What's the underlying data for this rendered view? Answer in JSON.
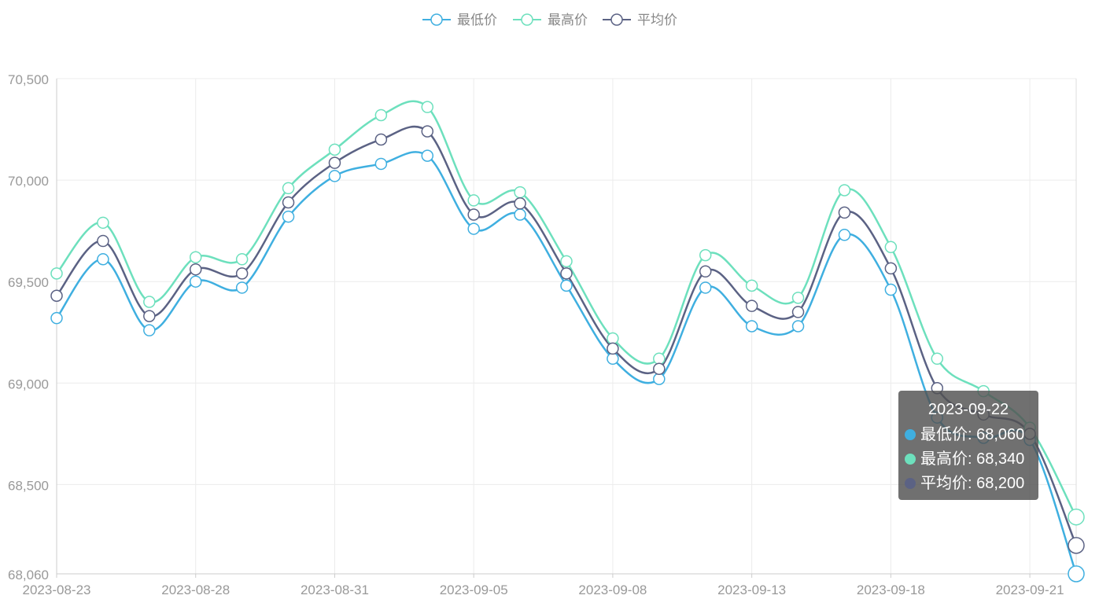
{
  "chart_data": {
    "type": "line",
    "smooth": true,
    "x": [
      "2023-08-23",
      "2023-08-24",
      "2023-08-25",
      "2023-08-28",
      "2023-08-29",
      "2023-08-30",
      "2023-08-31",
      "2023-09-01",
      "2023-09-04",
      "2023-09-05",
      "2023-09-06",
      "2023-09-07",
      "2023-09-08",
      "2023-09-11",
      "2023-09-12",
      "2023-09-13",
      "2023-09-14",
      "2023-09-15",
      "2023-09-18",
      "2023-09-19",
      "2023-09-20",
      "2023-09-21",
      "2023-09-22"
    ],
    "x_tick_labels": [
      "2023-08-23",
      "2023-08-28",
      "2023-08-31",
      "2023-09-05",
      "2023-09-08",
      "2023-09-13",
      "2023-09-18",
      "2023-09-21"
    ],
    "y_ticks": [
      68060,
      68500,
      69000,
      69500,
      70000,
      70500
    ],
    "y_tick_labels": [
      "68,060",
      "68,500",
      "69,000",
      "69,500",
      "70,000",
      "70,500"
    ],
    "ylim": [
      68060,
      70500
    ],
    "grid": true,
    "legend_position": "top-center",
    "series": [
      {
        "name": "最低价",
        "color": "#3fafe0",
        "values": [
          69320,
          69610,
          69260,
          69500,
          69470,
          69820,
          70020,
          70080,
          70120,
          69760,
          69830,
          69480,
          69120,
          69020,
          69470,
          69280,
          69280,
          69730,
          69460,
          68830,
          68730,
          68720,
          68060
        ]
      },
      {
        "name": "最高价",
        "color": "#6de0bd",
        "values": [
          69540,
          69790,
          69400,
          69620,
          69610,
          69960,
          70150,
          70320,
          70360,
          69900,
          69940,
          69600,
          69220,
          69120,
          69630,
          69480,
          69420,
          69950,
          69670,
          69120,
          68960,
          68780,
          68340
        ]
      },
      {
        "name": "平均价",
        "color": "#5b6284",
        "values": [
          69430,
          69700,
          69330,
          69560,
          69540,
          69890,
          70085,
          70200,
          70240,
          69830,
          69885,
          69540,
          69170,
          69070,
          69550,
          69380,
          69350,
          69840,
          69565,
          68975,
          68845,
          68750,
          68200
        ]
      }
    ]
  },
  "tooltip": {
    "date": "2023-09-22",
    "rows": [
      {
        "label": "最低价: 68,060",
        "color": "#3fafe0"
      },
      {
        "label": "最高价: 68,340",
        "color": "#6de0bd"
      },
      {
        "label": "平均价: 68,200",
        "color": "#5b6284"
      }
    ]
  }
}
